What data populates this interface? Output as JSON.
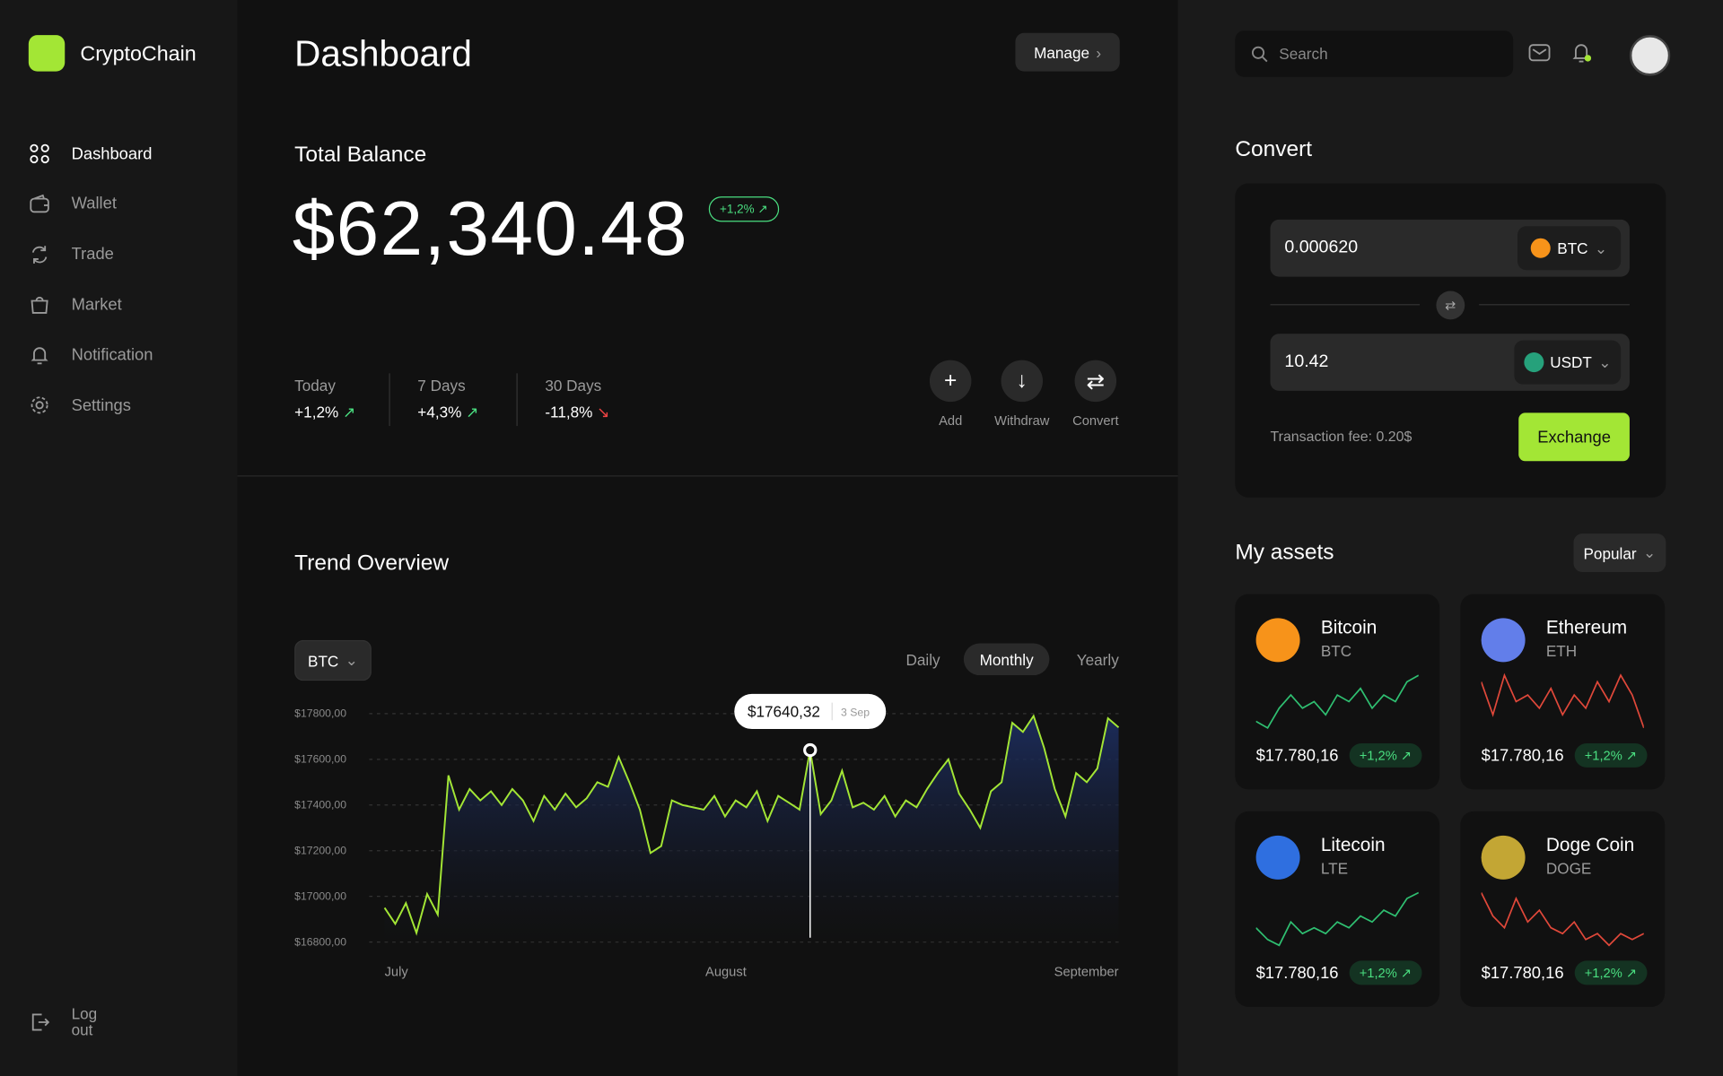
{
  "brand": "CryptoChain",
  "nav": [
    "Dashboard",
    "Wallet",
    "Trade",
    "Market",
    "Notification",
    "Settings"
  ],
  "logout": "Log out",
  "header": {
    "title": "Dashboard",
    "manage": "Manage"
  },
  "balance": {
    "label": "Total Balance",
    "amount": "$62,340.48",
    "change": "+1,2%"
  },
  "periods": [
    {
      "label": "Today",
      "change": "+1,2%"
    },
    {
      "label": "7 Days",
      "change": "+4,3%"
    },
    {
      "label": "30 Days",
      "change": "-11,8%"
    }
  ],
  "actions": [
    "Add",
    "Withdraw",
    "Convert"
  ],
  "trend": {
    "title": "Trend Overview",
    "coin": "BTC",
    "ranges": [
      "Daily",
      "Monthly",
      "Yearly"
    ],
    "chart": {
      "type": "line",
      "x_labels": [
        "July",
        "August",
        "September"
      ],
      "color": "#a3e635",
      "values": [
        16950,
        16880,
        16970,
        16840,
        17010,
        16920,
        17530,
        17380,
        17470,
        17420,
        17460,
        17400,
        17470,
        17420,
        17330,
        17440,
        17380,
        17450,
        17390,
        17430,
        17500,
        17480,
        17610,
        17500,
        17380,
        17190,
        17220,
        17420,
        17400,
        17390,
        17380,
        17440,
        17350,
        17420,
        17390,
        17460,
        17330,
        17440,
        17410,
        17380,
        17640.32,
        17360,
        17420,
        17550,
        17390,
        17410,
        17380,
        17440,
        17350,
        17420,
        17390,
        17470,
        17540,
        17600,
        17450,
        17380,
        17300,
        17460,
        17500,
        17760,
        17720,
        17790,
        17650,
        17470,
        17350,
        17540,
        17500,
        17560,
        17780,
        17740
      ],
      "ylim": [
        16800,
        17800
      ],
      "yticks": [
        {
          "value": 16800,
          "label": "$16800,00"
        },
        {
          "value": 17000,
          "label": "$17000,00"
        },
        {
          "value": 17200,
          "label": "$17200,00"
        },
        {
          "value": 17400,
          "label": "$17400,00"
        },
        {
          "value": 17600,
          "label": "$17600,00"
        },
        {
          "value": 17800,
          "label": "$17800,00"
        }
      ],
      "grid": true,
      "tooltip": {
        "value": 17640.32,
        "label": "$17640,32",
        "date": "3 Sep"
      }
    }
  },
  "search": "Search",
  "convert": {
    "title": "Convert",
    "from": {
      "amount": "0.000620",
      "coin": "BTC"
    },
    "to": {
      "amount": "10.42",
      "coin": "USDT"
    },
    "fee": "Transaction fee: 0.20$",
    "button": "Exchange"
  },
  "assets": {
    "title": "My assets",
    "filter": "Popular",
    "items": [
      {
        "name": "Bitcoin",
        "symbol": "BTC",
        "price": "$17.780,16",
        "change": "+1,2%",
        "color": "#f7931a",
        "spark": [
          2,
          1,
          4,
          6,
          4,
          5,
          3,
          6,
          5,
          7,
          4,
          6,
          5,
          8,
          9
        ]
      },
      {
        "name": "Ethereum",
        "symbol": "ETH",
        "price": "$17.780,16",
        "change": "+1,2%",
        "color": "#627eea",
        "spark": [
          8,
          3,
          9,
          5,
          6,
          4,
          7,
          3,
          6,
          4,
          8,
          5,
          9,
          6,
          1
        ]
      },
      {
        "name": "Litecoin",
        "symbol": "LTE",
        "price": "$17.780,16",
        "change": "+1,2%",
        "color": "#2f6fe0",
        "spark": [
          3,
          1,
          0,
          4,
          2,
          3,
          2,
          4,
          3,
          5,
          4,
          6,
          5,
          8,
          9
        ]
      },
      {
        "name": "Doge Coin",
        "symbol": "DOGE",
        "price": "$17.780,16",
        "change": "+1,2%",
        "color": "#c3a634",
        "spark": [
          9,
          5,
          3,
          8,
          4,
          6,
          3,
          2,
          4,
          1,
          2,
          0,
          2,
          1,
          2
        ]
      }
    ]
  }
}
